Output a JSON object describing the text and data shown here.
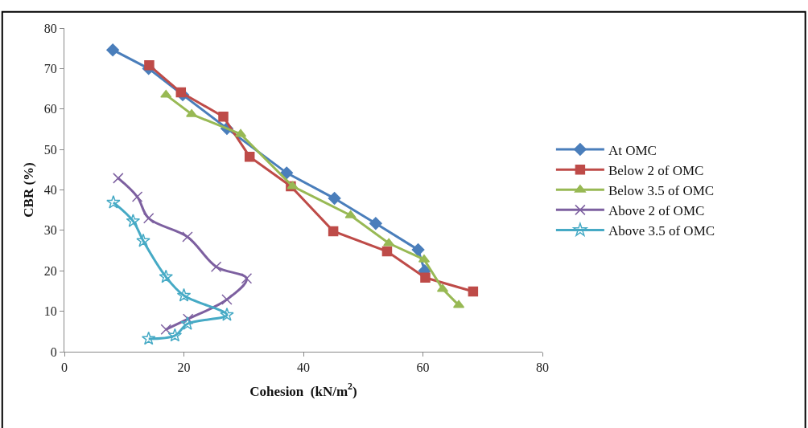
{
  "chart_data": {
    "type": "line",
    "xlabel": "Cohesion  (kN/m$^{2}$)",
    "ylabel": "CBR (%)",
    "xlim": [
      0,
      80
    ],
    "xticks": [
      0,
      20,
      40,
      60,
      80
    ],
    "ylim": [
      0,
      80
    ],
    "yticks": [
      0,
      10,
      20,
      30,
      40,
      50,
      60,
      70,
      80
    ],
    "legend": "right",
    "series": [
      {
        "name": "At OMC",
        "color": "#4a7ebb",
        "marker": "diamond",
        "x": [
          8.1,
          14.1,
          19.8,
          27.2,
          37.2,
          45.2,
          52.1,
          59.2,
          60.3
        ],
        "values": [
          74.6,
          70,
          63.5,
          55.2,
          44.2,
          37.9,
          31.7,
          25.2,
          20
        ]
      },
      {
        "name": "Below 2 of OMC",
        "color": "#be4b48",
        "marker": "square",
        "x": [
          14.2,
          19.5,
          26.6,
          31,
          37.9,
          45,
          54,
          60.4,
          68.4
        ],
        "values": [
          70.8,
          64.1,
          58.1,
          48.2,
          40.9,
          29.8,
          24.8,
          18.3,
          14.9
        ]
      },
      {
        "name": "Below 3.5 of OMC",
        "color": "#98b954",
        "marker": "triangle",
        "x": [
          17,
          21.3,
          29.5,
          38.2,
          47.9,
          54.3,
          60.2,
          63.3,
          66
        ],
        "values": [
          63.5,
          58.7,
          53.8,
          40.9,
          33.7,
          26.8,
          22.8,
          15.5,
          11.5
        ]
      },
      {
        "name": "Above 2 of OMC",
        "color": "#7d60a0",
        "marker": "cross",
        "x": [
          9,
          12.2,
          14.1,
          20.6,
          25.4,
          30.5,
          27.2,
          20.7,
          17
        ],
        "values": [
          42.9,
          38.3,
          33,
          28.4,
          21,
          18.1,
          12.9,
          8.1,
          5.5
        ]
      },
      {
        "name": "Above 3.5 of OMC",
        "color": "#46aac5",
        "marker": "star",
        "x": [
          8.2,
          11.5,
          13.2,
          17,
          20,
          27.2,
          20.6,
          18.5,
          14.1
        ],
        "values": [
          36.9,
          32.3,
          27.4,
          18.5,
          13.9,
          9.1,
          6.9,
          4,
          3.2
        ]
      }
    ]
  }
}
